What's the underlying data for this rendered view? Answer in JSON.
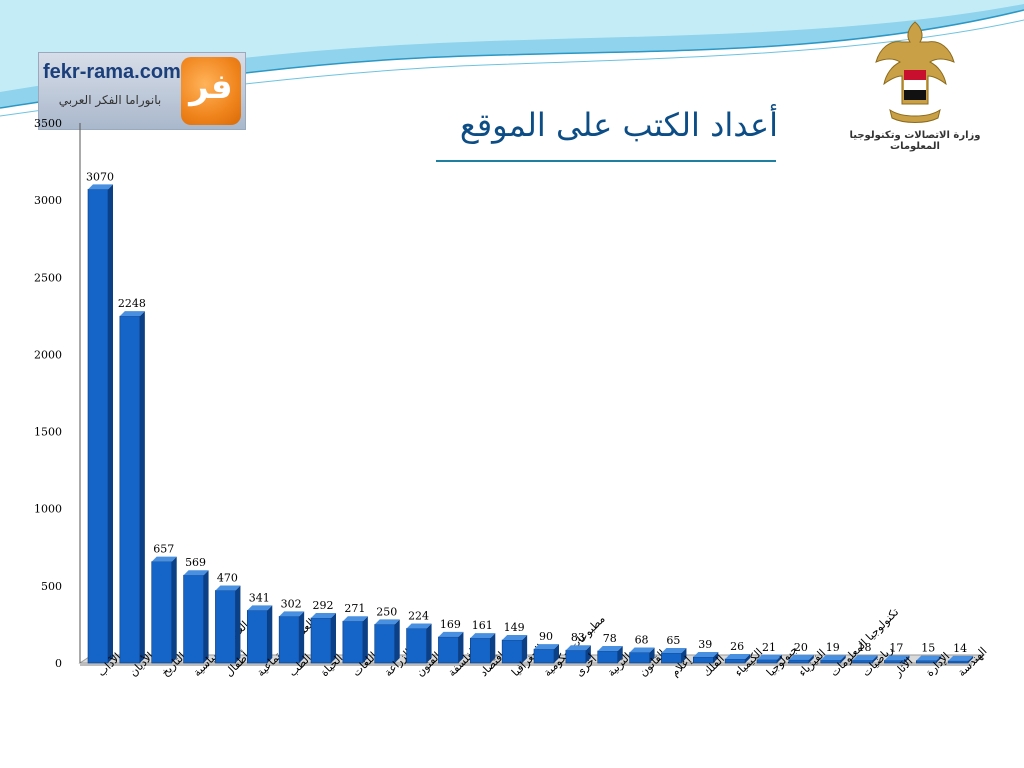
{
  "header": {
    "title": "أعداد الكتب على الموقع",
    "logo": {
      "site": "fekr-rama.com",
      "tagline": "بانوراما الفكر العربي",
      "emblem_glyph": "فر"
    },
    "ministry": {
      "name": "وزارة الاتصالات وتكنولوجيا المعلومات"
    }
  },
  "colors": {
    "bar_front": "#1565c8",
    "bar_side": "#0b3f86",
    "bar_top": "#4a90e0",
    "title": "#0d4d86",
    "wave": "#8fd3ec"
  },
  "chart_data": {
    "type": "bar",
    "title": "",
    "xlabel": "",
    "ylabel": "",
    "ylim": [
      0,
      3500
    ],
    "yticks": [
      0,
      500,
      1000,
      1500,
      2000,
      2500,
      3000,
      3500
    ],
    "grid": false,
    "legend": "none",
    "categories": [
      "الآداب",
      "الأديان",
      "التاريخ",
      "العلوم السياسية",
      "أطفال",
      "العلوم الاجتماعية",
      "الطب",
      "علوم الحياة",
      "اللغات",
      "الزراعة",
      "الفنون",
      "الفلسفة",
      "اقتصاد",
      "الجغرافيا",
      "مطبوعات حكومية",
      "أخرى",
      "التربية",
      "القانون",
      "إعلام",
      "الفلك",
      "الكيمياء",
      "جيولوجيا",
      "الفيزياء",
      "تكنولوجيا المعلومات",
      "رياضيات",
      "الآثار",
      "الإدارة",
      "الهندسة"
    ],
    "values": [
      3070,
      2248,
      657,
      569,
      470,
      341,
      302,
      292,
      271,
      250,
      224,
      169,
      161,
      149,
      90,
      83,
      78,
      68,
      65,
      39,
      26,
      21,
      20,
      19,
      18,
      17,
      15,
      14
    ]
  }
}
